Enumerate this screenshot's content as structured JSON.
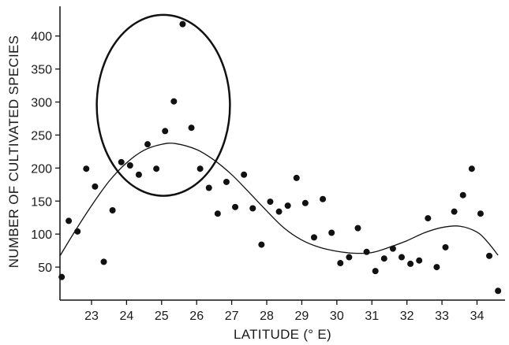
{
  "chart_data": {
    "type": "scatter",
    "title": "",
    "xlabel": "LATITUDE (° E)",
    "ylabel": "NUMBER OF CULTIVATED SPECIES",
    "xlim": [
      22.1,
      34.8
    ],
    "ylim": [
      0,
      445
    ],
    "xticks": [
      23,
      24,
      25,
      26,
      27,
      28,
      29,
      30,
      31,
      32,
      33,
      34
    ],
    "yticks": [
      50,
      100,
      150,
      200,
      250,
      300,
      350,
      400
    ],
    "grid": false,
    "legend": "none",
    "points": [
      {
        "x": 22.15,
        "y": 35
      },
      {
        "x": 22.35,
        "y": 120
      },
      {
        "x": 22.6,
        "y": 104
      },
      {
        "x": 22.85,
        "y": 199
      },
      {
        "x": 23.1,
        "y": 172
      },
      {
        "x": 23.35,
        "y": 58
      },
      {
        "x": 23.6,
        "y": 136
      },
      {
        "x": 23.85,
        "y": 209
      },
      {
        "x": 24.1,
        "y": 204
      },
      {
        "x": 24.35,
        "y": 190
      },
      {
        "x": 24.6,
        "y": 236
      },
      {
        "x": 24.85,
        "y": 199
      },
      {
        "x": 25.1,
        "y": 256
      },
      {
        "x": 25.35,
        "y": 301
      },
      {
        "x": 25.6,
        "y": 418
      },
      {
        "x": 25.85,
        "y": 261
      },
      {
        "x": 26.1,
        "y": 199
      },
      {
        "x": 26.35,
        "y": 170
      },
      {
        "x": 26.6,
        "y": 131
      },
      {
        "x": 26.85,
        "y": 179
      },
      {
        "x": 27.1,
        "y": 141
      },
      {
        "x": 27.35,
        "y": 190
      },
      {
        "x": 27.6,
        "y": 139
      },
      {
        "x": 27.85,
        "y": 84
      },
      {
        "x": 28.1,
        "y": 149
      },
      {
        "x": 28.35,
        "y": 134
      },
      {
        "x": 28.6,
        "y": 143
      },
      {
        "x": 28.85,
        "y": 185
      },
      {
        "x": 29.1,
        "y": 147
      },
      {
        "x": 29.35,
        "y": 95
      },
      {
        "x": 29.6,
        "y": 153
      },
      {
        "x": 29.85,
        "y": 102
      },
      {
        "x": 30.1,
        "y": 56
      },
      {
        "x": 30.35,
        "y": 65
      },
      {
        "x": 30.6,
        "y": 109
      },
      {
        "x": 30.85,
        "y": 73
      },
      {
        "x": 31.1,
        "y": 44
      },
      {
        "x": 31.35,
        "y": 63
      },
      {
        "x": 31.6,
        "y": 78
      },
      {
        "x": 31.85,
        "y": 65
      },
      {
        "x": 32.1,
        "y": 55
      },
      {
        "x": 32.35,
        "y": 60
      },
      {
        "x": 32.6,
        "y": 124
      },
      {
        "x": 32.85,
        "y": 50
      },
      {
        "x": 33.1,
        "y": 80
      },
      {
        "x": 33.35,
        "y": 134
      },
      {
        "x": 33.6,
        "y": 159
      },
      {
        "x": 33.85,
        "y": 199
      },
      {
        "x": 34.1,
        "y": 131
      },
      {
        "x": 34.35,
        "y": 67
      },
      {
        "x": 34.6,
        "y": 14
      }
    ],
    "trend_curve": [
      {
        "x": 22.1,
        "y": 67
      },
      {
        "x": 22.5,
        "y": 102
      },
      {
        "x": 23.0,
        "y": 143
      },
      {
        "x": 23.5,
        "y": 180
      },
      {
        "x": 24.0,
        "y": 208
      },
      {
        "x": 24.5,
        "y": 227
      },
      {
        "x": 25.0,
        "y": 236
      },
      {
        "x": 25.4,
        "y": 237
      },
      {
        "x": 26.0,
        "y": 228
      },
      {
        "x": 26.5,
        "y": 212
      },
      {
        "x": 27.0,
        "y": 190
      },
      {
        "x": 27.5,
        "y": 163
      },
      {
        "x": 28.0,
        "y": 135
      },
      {
        "x": 28.5,
        "y": 109
      },
      {
        "x": 29.0,
        "y": 91
      },
      {
        "x": 29.5,
        "y": 80
      },
      {
        "x": 30.0,
        "y": 74
      },
      {
        "x": 30.5,
        "y": 71
      },
      {
        "x": 31.0,
        "y": 72
      },
      {
        "x": 31.5,
        "y": 80
      },
      {
        "x": 32.0,
        "y": 90
      },
      {
        "x": 32.5,
        "y": 102
      },
      {
        "x": 33.0,
        "y": 110
      },
      {
        "x": 33.5,
        "y": 112
      },
      {
        "x": 34.0,
        "y": 103
      },
      {
        "x": 34.3,
        "y": 88
      },
      {
        "x": 34.6,
        "y": 68
      }
    ],
    "highlight_ellipse": {
      "cx": 25.05,
      "cy": 295,
      "rx": 1.9,
      "ry": 137
    },
    "colors": {
      "marks": "#111111",
      "axes": "#111111",
      "background": "#ffffff"
    }
  }
}
